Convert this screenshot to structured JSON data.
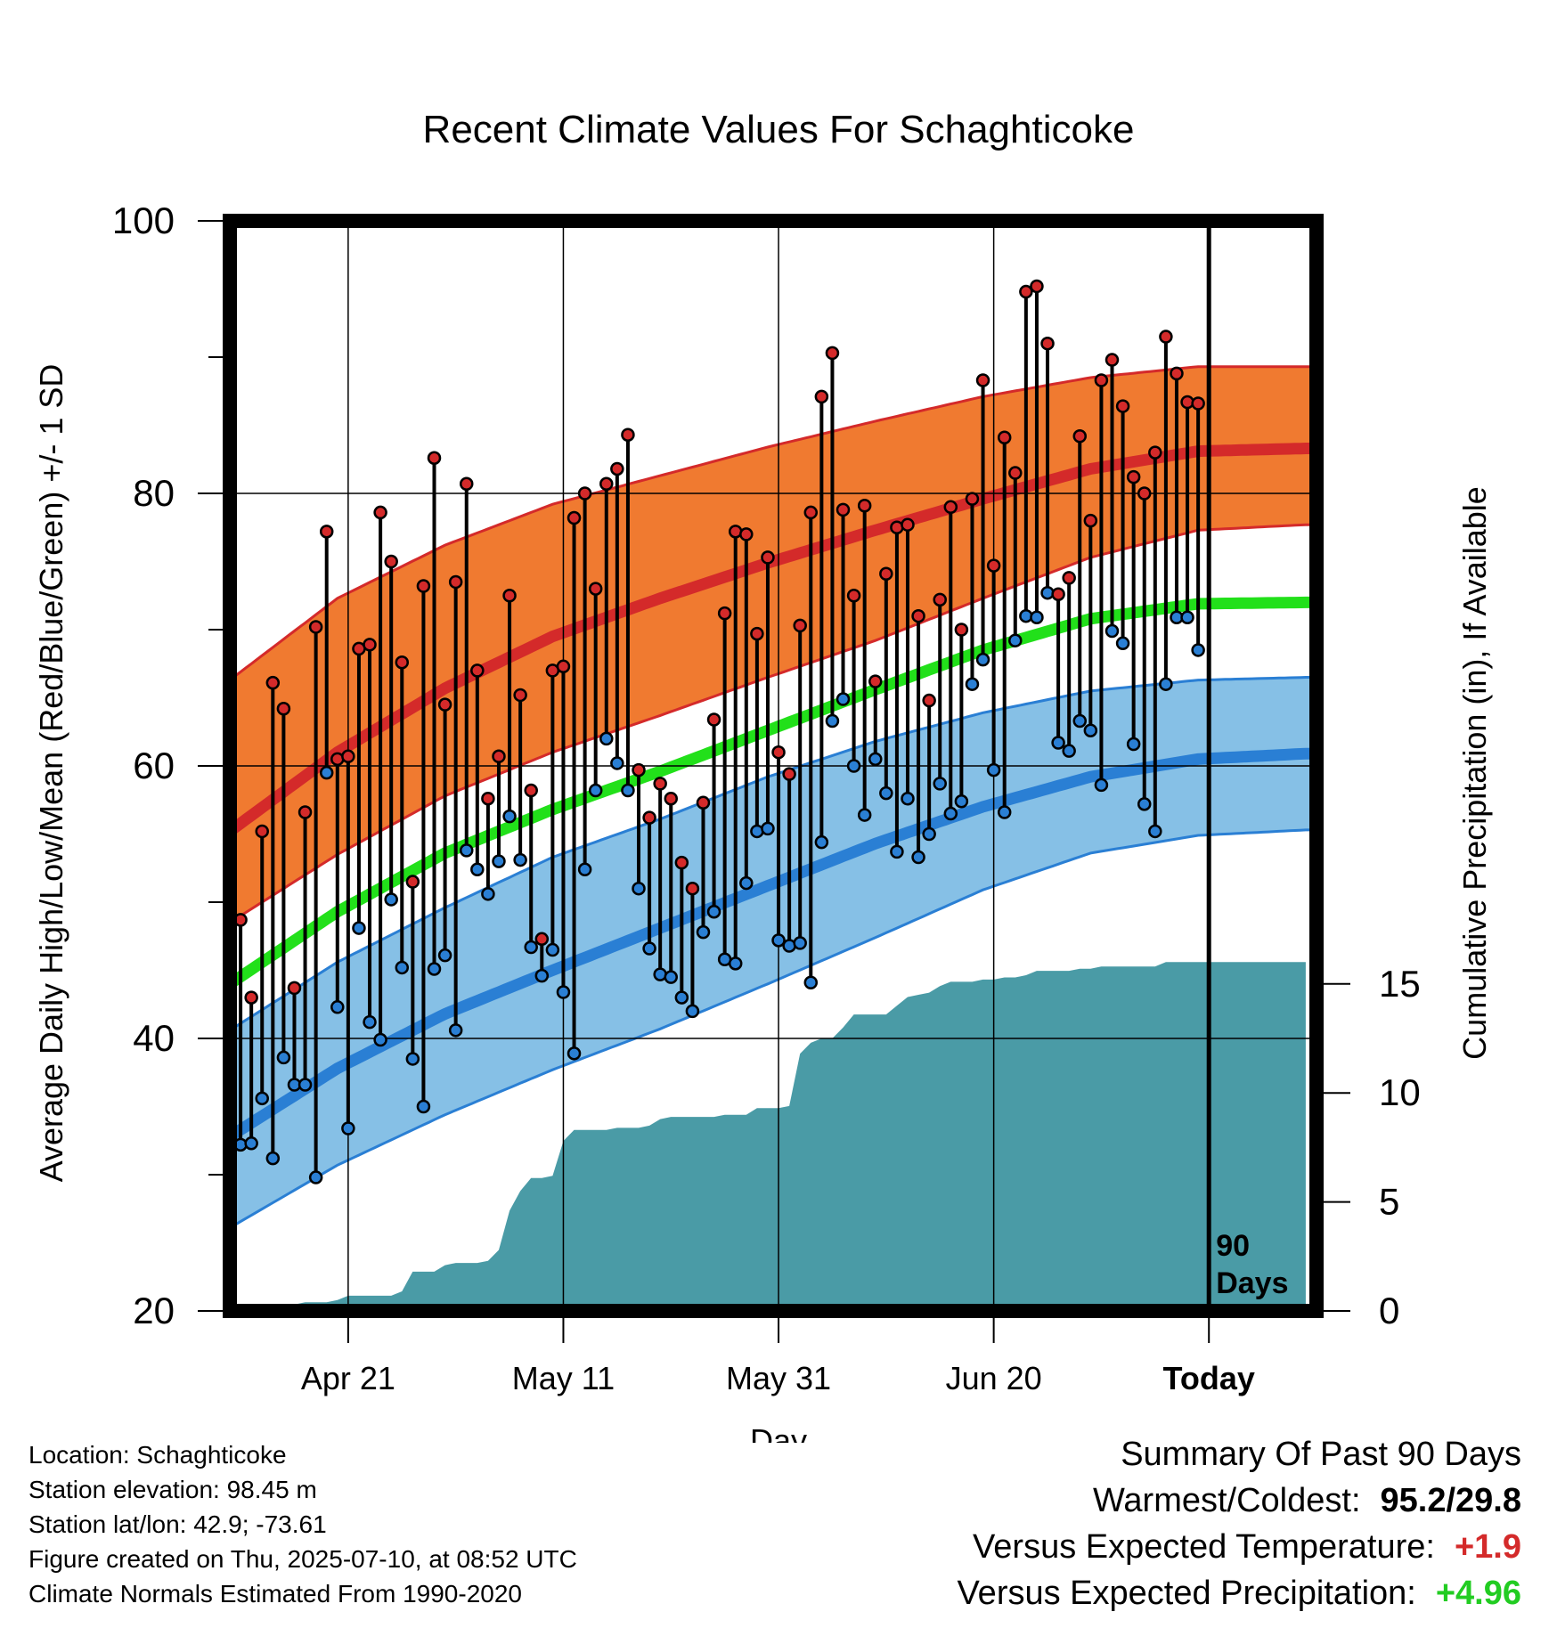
{
  "chart_data": {
    "type": "line",
    "title": "Recent Climate Values For Schaghticoke",
    "xlabel": "Day",
    "ylabel": "Average Daily High/Low/Mean (Red/Blue/Green) +/- 1 SD",
    "y2label": "Cumulative Precipitation (in), If Available",
    "ylim": [
      20,
      100
    ],
    "y2lim": [
      0,
      50
    ],
    "yticks": [
      20,
      40,
      60,
      80,
      100
    ],
    "y2ticks": [
      0,
      5,
      10,
      15
    ],
    "xlim": [
      -1,
      100
    ],
    "xticks": [
      {
        "day": 10,
        "label": "Apr 21"
      },
      {
        "day": 30,
        "label": "May 11"
      },
      {
        "day": 50,
        "label": "May 31"
      },
      {
        "day": 70,
        "label": "Jun 20"
      },
      {
        "day": 90,
        "label": "Today"
      }
    ],
    "today_day": 90,
    "today_label": [
      "90",
      "Days"
    ],
    "normals": {
      "days": [
        -1,
        9,
        19,
        29,
        39,
        49,
        59,
        69,
        79,
        89,
        99
      ],
      "high_mean": [
        55.2,
        61,
        65.7,
        69.5,
        72.3,
        74.9,
        77.3,
        79.6,
        81.8,
        83.1,
        83.3
      ],
      "high_upper": [
        66.3,
        72.3,
        76.2,
        79.2,
        81.3,
        83.4,
        85.3,
        87.1,
        88.5,
        89.3,
        89.3
      ],
      "high_lower": [
        48.5,
        53.5,
        57.8,
        61,
        63.7,
        66.5,
        69.2,
        72.3,
        75.3,
        77.3,
        77.7
      ],
      "low_mean": [
        32.8,
        37.8,
        41.8,
        45,
        48.1,
        51.2,
        54.3,
        57,
        59.2,
        60.5,
        60.9
      ],
      "low_upper": [
        40.6,
        45.6,
        49.6,
        53.3,
        56.1,
        59.2,
        61.8,
        63.9,
        65.5,
        66.3,
        66.5
      ],
      "low_lower": [
        26.1,
        30.7,
        34.4,
        37.7,
        40.7,
        44,
        47.4,
        50.9,
        53.6,
        54.9,
        55.3
      ],
      "avg_mean": [
        44,
        49.3,
        53.6,
        56.8,
        59.6,
        62.6,
        65.6,
        68.5,
        70.8,
        71.9,
        72
      ]
    },
    "series": [
      {
        "name": "High",
        "color": "#d42a2a",
        "values": [
          48.7,
          43,
          55.2,
          66.1,
          64.2,
          43.7,
          56.6,
          70.2,
          77.2,
          60.5,
          60.7,
          68.6,
          68.9,
          78.6,
          75,
          67.6,
          51.5,
          73.2,
          82.6,
          64.5,
          73.5,
          80.7,
          67,
          57.6,
          60.7,
          72.5,
          65.2,
          58.2,
          47.3,
          67,
          67.3,
          78.2,
          80,
          73,
          80.7,
          81.8,
          84.3,
          59.7,
          56.2,
          58.7,
          57.6,
          52.9,
          51,
          57.3,
          63.4,
          71.2,
          77.2,
          77,
          69.7,
          75.3,
          61,
          59.4,
          70.3,
          78.6,
          87.1,
          90.3,
          78.8,
          72.5,
          79.1,
          66.2,
          74.1,
          77.5,
          77.7,
          71,
          64.8,
          72.2,
          79,
          70,
          79.6,
          88.3,
          74.7,
          84.1,
          81.5,
          94.8,
          95.2,
          91,
          72.6,
          73.8,
          84.2,
          78,
          88.3,
          89.8,
          86.4,
          81.2,
          80,
          83,
          91.5,
          88.8,
          86.7,
          86.6
        ]
      },
      {
        "name": "Low",
        "color": "#2a7fd4",
        "values": [
          32.2,
          32.3,
          35.6,
          31.2,
          38.6,
          36.6,
          36.6,
          29.8,
          59.5,
          42.3,
          33.4,
          48.1,
          41.2,
          39.9,
          50.2,
          45.2,
          38.5,
          35,
          45.1,
          46.1,
          40.6,
          53.8,
          52.4,
          50.6,
          53,
          56.3,
          53.1,
          46.7,
          44.6,
          46.5,
          43.4,
          38.9,
          52.4,
          58.2,
          62,
          60.2,
          58.2,
          51,
          46.6,
          44.7,
          44.5,
          43,
          42,
          47.8,
          49.3,
          45.8,
          45.5,
          51.4,
          55.2,
          55.4,
          47.2,
          46.8,
          47,
          44.1,
          54.4,
          63.3,
          64.9,
          60,
          56.4,
          60.5,
          58,
          53.7,
          57.6,
          53.3,
          55,
          58.7,
          56.5,
          57.4,
          66,
          67.8,
          59.7,
          56.6,
          69.2,
          71,
          70.9,
          72.7,
          61.7,
          61.1,
          63.3,
          62.6,
          58.6,
          69.9,
          69,
          61.6,
          57.2,
          55.2,
          66,
          70.9,
          70.9,
          68.5
        ]
      },
      {
        "name": "Precipitation",
        "color": "#4a9ba6",
        "days": [
          0,
          1,
          2,
          3,
          4,
          5,
          6,
          7,
          8,
          9,
          10,
          11,
          12,
          13,
          14,
          15,
          16,
          17,
          18,
          19,
          20,
          21,
          22,
          23,
          24,
          25,
          26,
          27,
          28,
          29,
          30,
          31,
          32,
          33,
          34,
          35,
          36,
          37,
          38,
          39,
          40,
          41,
          42,
          43,
          44,
          45,
          46,
          47,
          48,
          49,
          50,
          51,
          52,
          53,
          54,
          55,
          56,
          57,
          58,
          59,
          60,
          61,
          62,
          63,
          64,
          65,
          66,
          67,
          68,
          69,
          70,
          71,
          72,
          73,
          74,
          75,
          76,
          77,
          78,
          79,
          80,
          81,
          82,
          83,
          84,
          85,
          86,
          87,
          88,
          89,
          90,
          91,
          92,
          93,
          94,
          95,
          96,
          97,
          98,
          99
        ],
        "values": [
          0.2,
          0.2,
          0.2,
          0.3,
          0.3,
          0.3,
          0.4,
          0.4,
          0.4,
          0.5,
          0.7,
          0.7,
          0.7,
          0.7,
          0.7,
          0.9,
          1.8,
          1.8,
          1.8,
          2.1,
          2.2,
          2.2,
          2.2,
          2.3,
          2.8,
          4.6,
          5.5,
          6.1,
          6.1,
          6.2,
          7.8,
          8.3,
          8.3,
          8.3,
          8.3,
          8.4,
          8.4,
          8.4,
          8.5,
          8.8,
          8.9,
          8.9,
          8.9,
          8.9,
          8.9,
          9.0,
          9.0,
          9.0,
          9.3,
          9.3,
          9.3,
          9.4,
          11.8,
          12.3,
          12.5,
          12.5,
          13.0,
          13.6,
          13.6,
          13.6,
          13.6,
          14.0,
          14.4,
          14.5,
          14.6,
          14.9,
          15.1,
          15.1,
          15.1,
          15.2,
          15.2,
          15.3,
          15.3,
          15.4,
          15.6,
          15.6,
          15.6,
          15.6,
          15.7,
          15.7,
          15.8,
          15.8,
          15.8,
          15.8,
          15.8,
          15.8,
          16.0,
          16.0,
          16.0,
          16.0,
          16.0,
          16.0,
          16.0,
          16.0,
          16.0,
          16.0,
          16.0,
          16.0,
          16.0,
          16.0
        ]
      }
    ]
  },
  "colors": {
    "high": "#d42a2a",
    "high_band": "#f07a30",
    "low": "#2a7fd4",
    "low_band": "#86c0e6",
    "mean": "#22e01a",
    "precip": "#4a9ba6",
    "positive_temp": "#d42a2a",
    "positive_precip": "#22cc22"
  },
  "station": {
    "location": "Location: Schaghticoke",
    "elevation": "Station elevation: 98.45 m",
    "latlon": "Station lat/lon: 42.9; -73.61",
    "created": "Figure created on Thu, 2025-07-10, at 08:52 UTC",
    "normals": "Climate Normals Estimated From 1990-2020"
  },
  "summary": {
    "title": "Summary Of Past 90 Days",
    "warm_cold_label": "Warmest/Coldest:",
    "warm_cold_value": "95.2/29.8",
    "temp_label": "Versus Expected Temperature:",
    "temp_value": "+1.9",
    "precip_label": "Versus Expected Precipitation:",
    "precip_value": "+4.96"
  }
}
